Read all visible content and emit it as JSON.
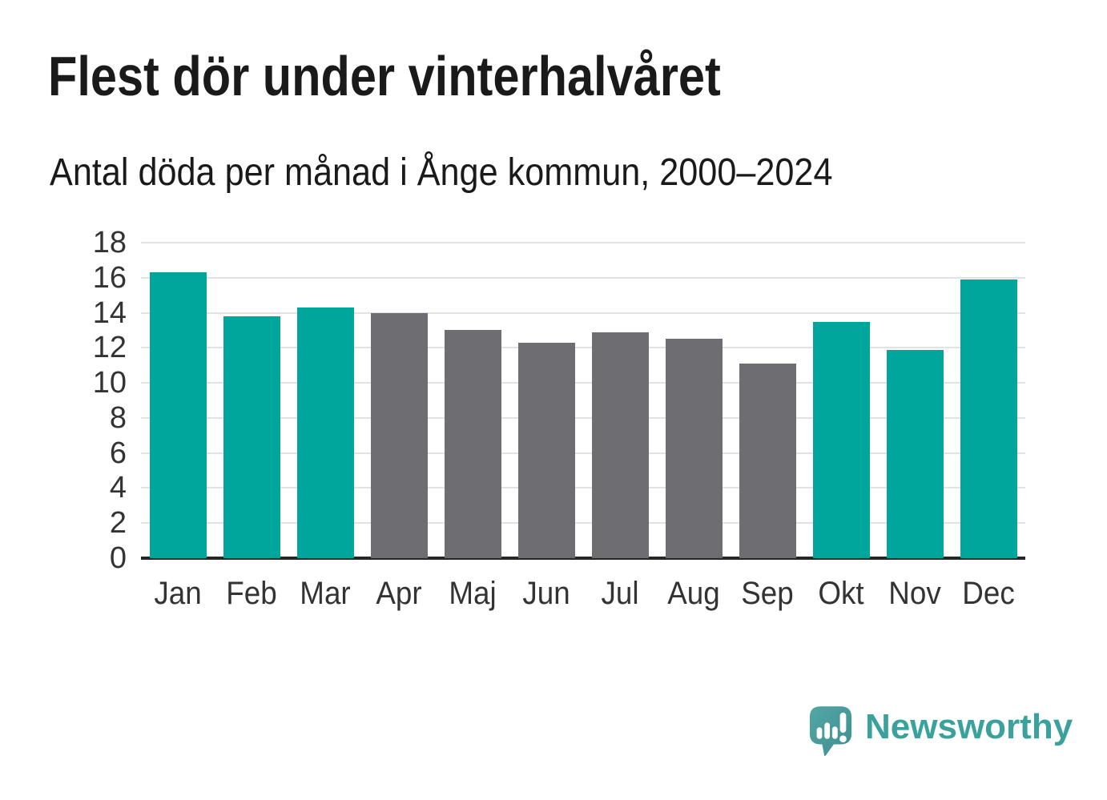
{
  "chart_data": {
    "type": "bar",
    "title": "Flest dör under vinterhalvåret",
    "subtitle": "Antal döda per månad i Ånge kommun, 2000–2024",
    "categories": [
      "Jan",
      "Feb",
      "Mar",
      "Apr",
      "Maj",
      "Jun",
      "Jul",
      "Aug",
      "Sep",
      "Okt",
      "Nov",
      "Dec"
    ],
    "values": [
      16.3,
      13.8,
      14.3,
      14.0,
      13.0,
      12.3,
      12.9,
      12.5,
      11.1,
      13.5,
      11.9,
      15.9
    ],
    "bar_groups": [
      "winter",
      "winter",
      "winter",
      "summer",
      "summer",
      "summer",
      "summer",
      "summer",
      "summer",
      "winter",
      "winter",
      "winter"
    ],
    "xlabel": "",
    "ylabel": "",
    "ylim": [
      0,
      18
    ],
    "yticks": [
      0,
      2,
      4,
      6,
      8,
      10,
      12,
      14,
      16,
      18
    ],
    "grid": "horizontal",
    "legend": "none"
  },
  "colors": {
    "winter_bar": "#00a59c",
    "summer_bar": "#6d6d72",
    "gridline": "#e2e2e2",
    "axis_line": "#262626",
    "tick_text": "#333333",
    "heading_text": "#1a1a1a",
    "logo_bubble": "#4ba09e",
    "logo_bubble_dark": "#3e8f8e",
    "logo_wordmark": "#3aa19c"
  },
  "footer": {
    "brand": "Newsworthy"
  }
}
